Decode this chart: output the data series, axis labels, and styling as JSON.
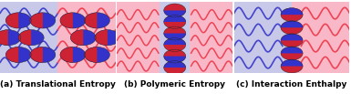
{
  "fig_width": 3.85,
  "fig_height": 1.03,
  "dpi": 100,
  "panels": [
    {
      "label": "(a) Translational Entropy",
      "left_bg": "#c8c8e8",
      "right_bg": "#f8b8c8",
      "waves_left_color": "#4444cc",
      "waves_right_color": "#ee4455"
    },
    {
      "label": "(b) Polymeric Entropy",
      "full_bg": "#f8b8c8",
      "center_stripe_color": "#c8c8e8",
      "waves_color": "#ee4455"
    },
    {
      "label": "(c) Interaction Enthalpy",
      "left_bg": "#c8c8e8",
      "right_bg": "#f8b8c8",
      "waves_left_color": "#4444cc",
      "waves_right_color": "#ee4455"
    }
  ],
  "label_fontsize": 6.5,
  "label_color": "black",
  "label_fontweight": "bold",
  "particle_color1": "#3333cc",
  "particle_color2": "#cc2233"
}
